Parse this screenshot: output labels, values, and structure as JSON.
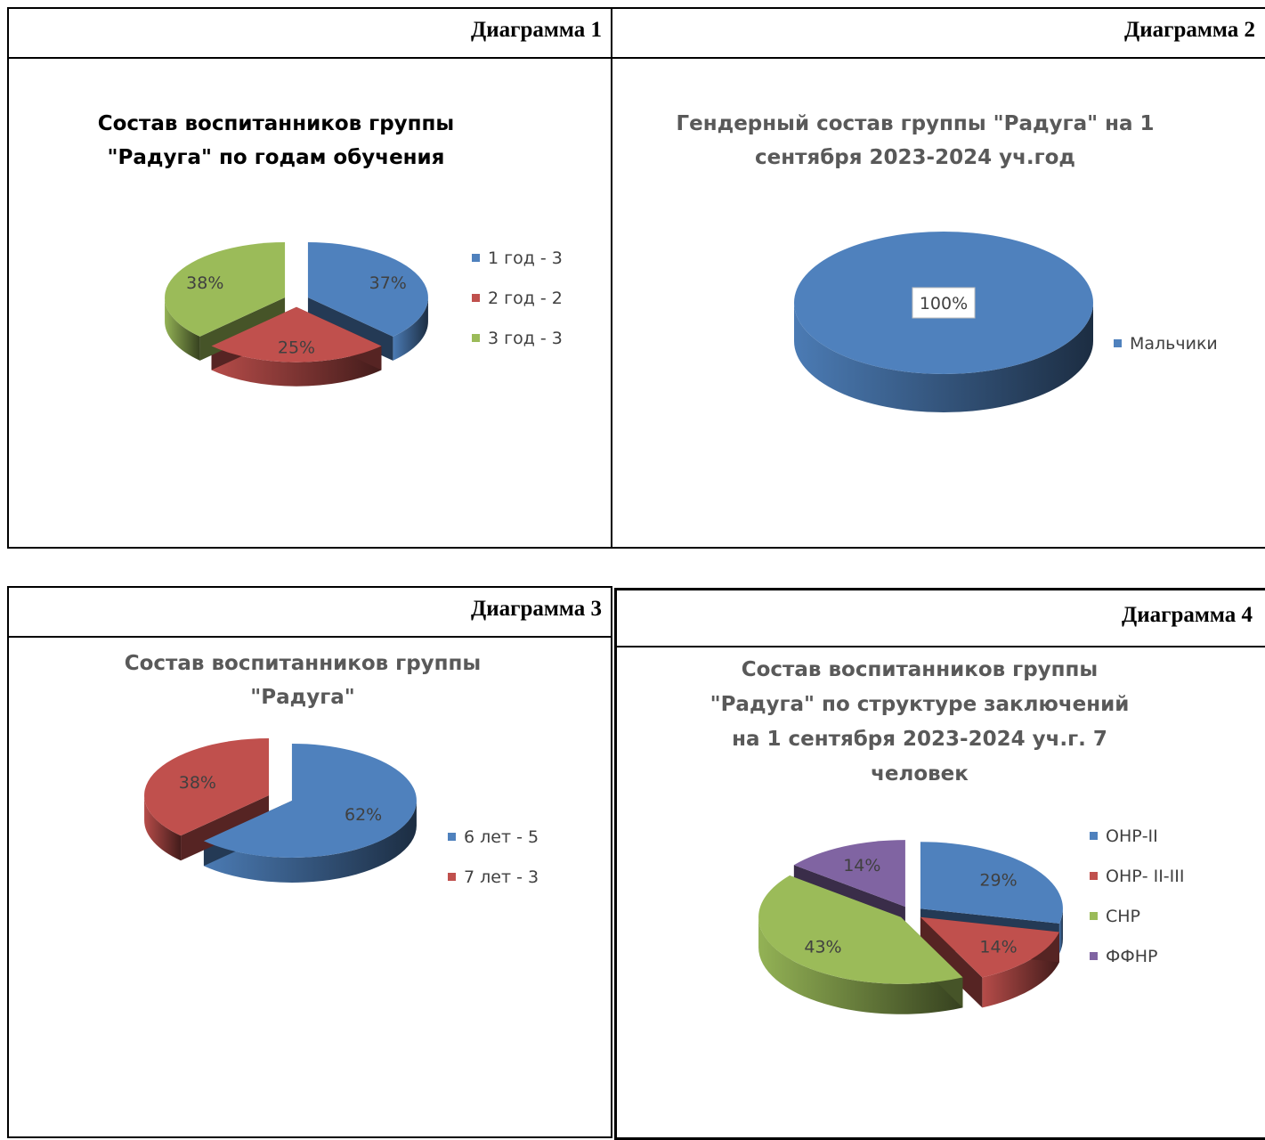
{
  "panels": [
    {
      "header": "Диаграмма 1"
    },
    {
      "header": "Диаграмма 2"
    },
    {
      "header": "Диаграмма 3"
    },
    {
      "header": "Диаграмма 4"
    }
  ],
  "chart_data": [
    {
      "type": "pie",
      "title_lines": [
        "Состав воспитанников группы",
        "\"Радуга\" по годам обучения"
      ],
      "categories": [
        "1 год - 3",
        "2 год - 2",
        "3 год - 3"
      ],
      "values": [
        3,
        2,
        3
      ],
      "data_labels": [
        "37%",
        "25%",
        "38%"
      ],
      "colors": [
        "#4f81bd",
        "#c0504d",
        "#9bbb59"
      ],
      "exploded": true,
      "legend": "right"
    },
    {
      "type": "pie",
      "title_lines": [
        "Гендерный состав группы \"Радуга\" на 1",
        "сентября 2023-2024 уч.год"
      ],
      "categories": [
        "Мальчики"
      ],
      "values": [
        1
      ],
      "data_labels": [
        "100%"
      ],
      "colors": [
        "#4f81bd"
      ],
      "exploded": false,
      "legend": "right"
    },
    {
      "type": "pie",
      "title_lines": [
        "Состав воспитанников группы",
        "\"Радуга\""
      ],
      "categories": [
        "6 лет - 5",
        "7 лет - 3"
      ],
      "values": [
        5,
        3
      ],
      "data_labels": [
        "62%",
        "38%"
      ],
      "colors": [
        "#4f81bd",
        "#c0504d"
      ],
      "exploded": true,
      "legend": "right"
    },
    {
      "type": "pie",
      "title_lines": [
        "Состав воспитанников группы",
        "\"Радуга\" по структуре заключений",
        "на 1 сентября 2023-2024 уч.г. 7",
        "человек"
      ],
      "categories": [
        "ОНР-II",
        "ОНР- II-III",
        "СНР",
        "ФФНР"
      ],
      "values": [
        2,
        1,
        3,
        1
      ],
      "data_labels": [
        "29%",
        "14%",
        "43%",
        "14%"
      ],
      "colors": [
        "#4f81bd",
        "#c0504d",
        "#9bbb59",
        "#8064a2"
      ],
      "exploded": true,
      "legend": "right"
    }
  ]
}
